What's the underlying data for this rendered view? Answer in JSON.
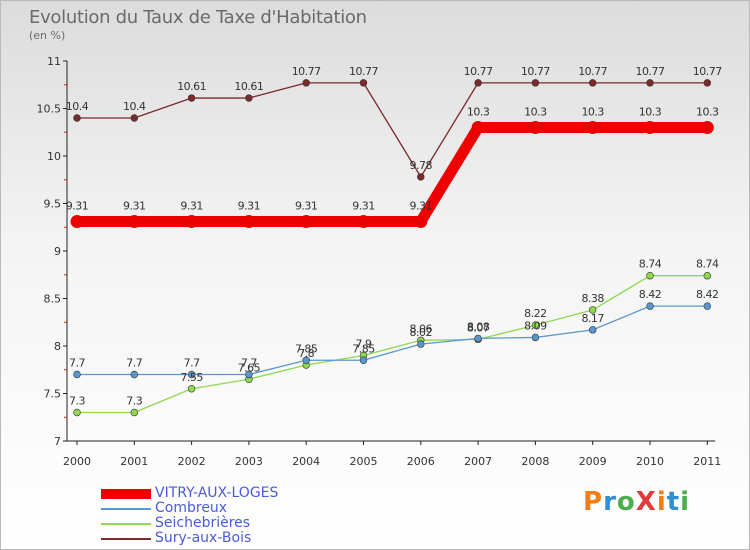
{
  "header": {
    "title": "Evolution du Taux de Taxe d'Habitation",
    "unit": "(en %)"
  },
  "logo": {
    "text": "ProXiti",
    "colors": [
      "#ef7d1a",
      "#2f8fd1",
      "#4cae4c",
      "#e23b3b",
      "#ef7d1a",
      "#2f8fd1",
      "#4cae4c"
    ]
  },
  "chart_data": {
    "type": "line",
    "x": [
      2000,
      2001,
      2002,
      2003,
      2004,
      2005,
      2006,
      2007,
      2008,
      2009,
      2010,
      2011
    ],
    "ylim": [
      7,
      11
    ],
    "yticks": [
      "7",
      "7.5",
      "8",
      "8.5",
      "9",
      "9.5",
      "10",
      "10.5",
      "11"
    ],
    "ytick_values": [
      7,
      7.5,
      8,
      8.5,
      9,
      9.5,
      10,
      10.5,
      11
    ],
    "grid": false,
    "legend_position": "bottom-left",
    "series": [
      {
        "name": "VITRY-AUX-LOGES",
        "color": "#ee0000",
        "values": [
          9.31,
          9.31,
          9.31,
          9.31,
          9.31,
          9.31,
          9.31,
          10.3,
          10.3,
          10.3,
          10.3,
          10.3
        ],
        "labels": [
          "9.31",
          "9.31",
          "9.31",
          "9.31",
          "9.31",
          "9.31",
          "9.31",
          "10.3",
          "10.3",
          "10.3",
          "10.3",
          "10.3"
        ]
      },
      {
        "name": "Combreux",
        "color": "#5a97cf",
        "values": [
          7.7,
          7.7,
          7.7,
          7.7,
          7.85,
          7.85,
          8.02,
          8.08,
          8.09,
          8.17,
          8.42,
          8.42
        ],
        "labels": [
          "7.7",
          "7.7",
          "7.7",
          "7.7",
          "7.85",
          "7.85",
          "8.02",
          "8.08",
          "8.09",
          "8.17",
          "8.42",
          "8.42"
        ]
      },
      {
        "name": "Seichebrières",
        "color": "#8fd84f",
        "values": [
          7.3,
          7.3,
          7.55,
          7.65,
          7.8,
          7.9,
          8.06,
          8.07,
          8.22,
          8.38,
          8.74,
          8.74
        ],
        "labels": [
          "7.3",
          "7.3",
          "7.55",
          "7.65",
          "7.8",
          "7.9",
          "8.06",
          "8.07",
          "8.22",
          "8.38",
          "8.74",
          "8.74"
        ]
      },
      {
        "name": "Sury-aux-Bois",
        "color": "#7a2a2a",
        "values": [
          10.4,
          10.4,
          10.61,
          10.61,
          10.77,
          10.77,
          9.78,
          10.77,
          10.77,
          10.77,
          10.77,
          10.77
        ],
        "labels": [
          "10.4",
          "10.4",
          "10.61",
          "10.61",
          "10.77",
          "10.77",
          "9.78",
          "10.77",
          "10.77",
          "10.77",
          "10.77",
          "10.77"
        ]
      }
    ]
  }
}
